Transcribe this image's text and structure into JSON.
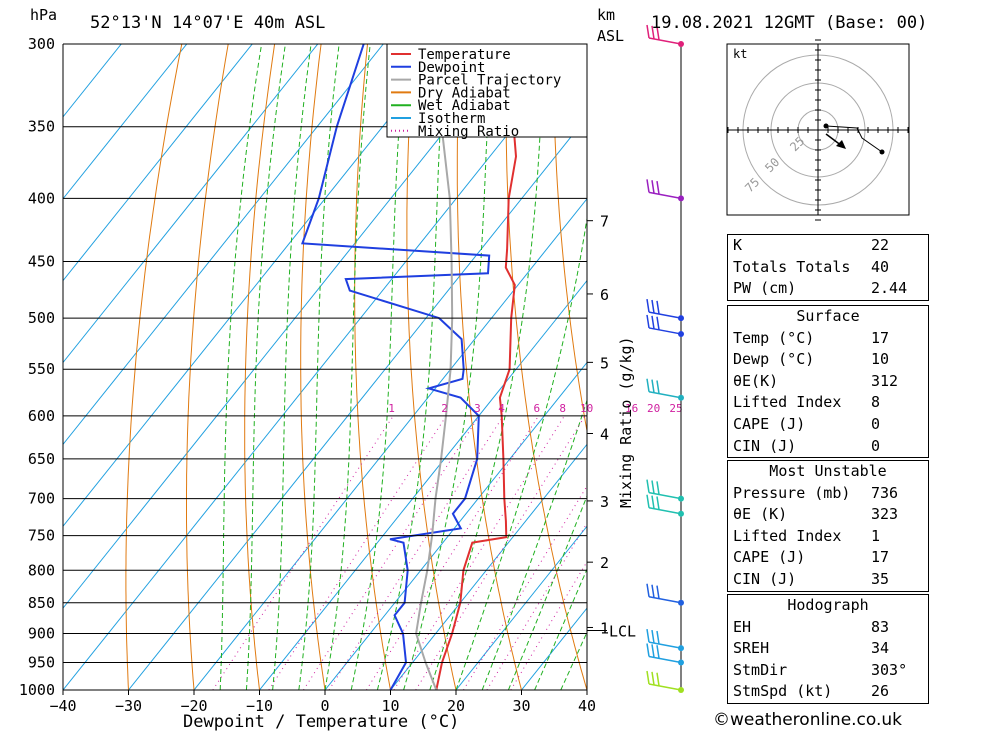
{
  "header": {
    "unit_hpa": "hPa",
    "location": "52°13'N  14°07'E  40m  ASL",
    "unit_km": "km",
    "unit_asl": "ASL",
    "datetime": "19.08.2021  12GMT  (Base: 00)"
  },
  "chart_data": {
    "type": "line",
    "xlabel": "Dewpoint / Temperature (°C)",
    "ylabel": "hPa",
    "right_axis_label": "Mixing Ratio (g/kg)",
    "xlim": [
      -40,
      40
    ],
    "ylim": [
      1000,
      300
    ],
    "x_ticks": [
      -40,
      -30,
      -20,
      -10,
      0,
      10,
      20,
      30,
      40
    ],
    "pressure_levels": [
      300,
      350,
      400,
      450,
      500,
      550,
      600,
      650,
      700,
      750,
      800,
      850,
      900,
      950,
      1000
    ],
    "km_ticks": [
      {
        "label": "7",
        "p": 417
      },
      {
        "label": "6",
        "p": 478
      },
      {
        "label": "5",
        "p": 543
      },
      {
        "label": "4",
        "p": 620
      },
      {
        "label": "3",
        "p": 703
      },
      {
        "label": "2",
        "p": 788
      },
      {
        "label": "1",
        "p": 890
      }
    ],
    "lcl": {
      "label": "LCL",
      "p": 895
    },
    "mixing_ratio_labels": [
      "1",
      "2",
      "3",
      "4",
      "6",
      "8",
      "10",
      "16",
      "20",
      "25"
    ],
    "legend": [
      "Temperature",
      "Dewpoint",
      "Parcel Trajectory",
      "Dry Adiabat",
      "Wet Adiabat",
      "Isotherm",
      "Mixing Ratio"
    ],
    "colors": {
      "temperature": "#e03030",
      "dewpoint": "#1f3fe0",
      "parcel": "#a8a8a8",
      "dry_adiabat": "#e07a10",
      "wet_adiabat": "#20b020",
      "isotherm": "#20a0e0",
      "mixing_ratio": "#d020a0"
    },
    "series": [
      {
        "name": "Temperature",
        "points": [
          {
            "p": 1000,
            "t": 17
          },
          {
            "p": 950,
            "t": 14.5
          },
          {
            "p": 900,
            "t": 12.5
          },
          {
            "p": 850,
            "t": 10
          },
          {
            "p": 800,
            "t": 6.5
          },
          {
            "p": 760,
            "t": 4.5
          },
          {
            "p": 752,
            "t": 9
          },
          {
            "p": 730,
            "t": 7
          },
          {
            "p": 700,
            "t": 4
          },
          {
            "p": 650,
            "t": -1
          },
          {
            "p": 600,
            "t": -6.5
          },
          {
            "p": 580,
            "t": -9
          },
          {
            "p": 550,
            "t": -11
          },
          {
            "p": 500,
            "t": -17
          },
          {
            "p": 470,
            "t": -20.5
          },
          {
            "p": 455,
            "t": -24
          },
          {
            "p": 440,
            "t": -26
          },
          {
            "p": 400,
            "t": -32
          },
          {
            "p": 370,
            "t": -36
          },
          {
            "p": 350,
            "t": -40
          },
          {
            "p": 300,
            "t": -50
          }
        ]
      },
      {
        "name": "Dewpoint",
        "points": [
          {
            "p": 1000,
            "t": 10
          },
          {
            "p": 950,
            "t": 9
          },
          {
            "p": 900,
            "t": 5
          },
          {
            "p": 870,
            "t": 1.5
          },
          {
            "p": 850,
            "t": 1.5
          },
          {
            "p": 800,
            "t": -2
          },
          {
            "p": 760,
            "t": -6
          },
          {
            "p": 755,
            "t": -8.5
          },
          {
            "p": 740,
            "t": 1
          },
          {
            "p": 720,
            "t": -2
          },
          {
            "p": 700,
            "t": -2
          },
          {
            "p": 650,
            "t": -5
          },
          {
            "p": 600,
            "t": -10
          },
          {
            "p": 580,
            "t": -15
          },
          {
            "p": 570,
            "t": -21
          },
          {
            "p": 560,
            "t": -17
          },
          {
            "p": 550,
            "t": -18
          },
          {
            "p": 520,
            "t": -22
          },
          {
            "p": 500,
            "t": -28
          },
          {
            "p": 475,
            "t": -45
          },
          {
            "p": 465,
            "t": -47
          },
          {
            "p": 460,
            "t": -26
          },
          {
            "p": 445,
            "t": -28
          },
          {
            "p": 435,
            "t": -58
          },
          {
            "p": 400,
            "t": -61
          },
          {
            "p": 350,
            "t": -67
          },
          {
            "p": 300,
            "t": -73
          }
        ]
      },
      {
        "name": "Parcel Trajectory",
        "points": [
          {
            "p": 1000,
            "t": 17
          },
          {
            "p": 950,
            "t": 12
          },
          {
            "p": 900,
            "t": 7
          },
          {
            "p": 850,
            "t": 4
          },
          {
            "p": 800,
            "t": 1
          },
          {
            "p": 750,
            "t": -2.5
          },
          {
            "p": 700,
            "t": -6.5
          },
          {
            "p": 650,
            "t": -10.5
          },
          {
            "p": 600,
            "t": -15
          },
          {
            "p": 550,
            "t": -20
          },
          {
            "p": 500,
            "t": -26
          },
          {
            "p": 450,
            "t": -33
          },
          {
            "p": 400,
            "t": -41
          },
          {
            "p": 350,
            "t": -51
          },
          {
            "p": 300,
            "t": -62
          }
        ]
      }
    ],
    "wind_barbs": [
      {
        "p": 300,
        "color": "#e0207a"
      },
      {
        "p": 400,
        "color": "#9a20c0"
      },
      {
        "p": 500,
        "color": "#2040e0"
      },
      {
        "p": 515,
        "color": "#2040e0"
      },
      {
        "p": 580,
        "color": "#20b0c0"
      },
      {
        "p": 700,
        "color": "#20c0b0"
      },
      {
        "p": 720,
        "color": "#20c0b0"
      },
      {
        "p": 850,
        "color": "#2060e0"
      },
      {
        "p": 925,
        "color": "#20a0e0"
      },
      {
        "p": 950,
        "color": "#20a0e0"
      },
      {
        "p": 1000,
        "color": "#a0e020"
      }
    ]
  },
  "hodograph": {
    "unit": "kt",
    "ring_labels": [
      "25",
      "50",
      "75"
    ]
  },
  "indices": {
    "rows": [
      {
        "label": "K",
        "value": "22"
      },
      {
        "label": "Totals Totals",
        "value": "40"
      },
      {
        "label": "PW (cm)",
        "value": "2.44"
      }
    ]
  },
  "surface": {
    "title": "Surface",
    "rows": [
      {
        "label": "Temp (°C)",
        "value": "17"
      },
      {
        "label": "Dewp (°C)",
        "value": "10"
      },
      {
        "label": "θE(K)",
        "value": "312"
      },
      {
        "label": "Lifted Index",
        "value": "8"
      },
      {
        "label": "CAPE (J)",
        "value": "0"
      },
      {
        "label": "CIN (J)",
        "value": "0"
      }
    ]
  },
  "most_unstable": {
    "title": "Most Unstable",
    "rows": [
      {
        "label": "Pressure (mb)",
        "value": "736"
      },
      {
        "label": "θE (K)",
        "value": "323"
      },
      {
        "label": "Lifted Index",
        "value": "1"
      },
      {
        "label": "CAPE (J)",
        "value": "17"
      },
      {
        "label": "CIN (J)",
        "value": "35"
      }
    ]
  },
  "hodograph_stats": {
    "title": "Hodograph",
    "rows": [
      {
        "label": "EH",
        "value": "83"
      },
      {
        "label": "SREH",
        "value": "34"
      },
      {
        "label": "StmDir",
        "value": "303°"
      },
      {
        "label": "StmSpd (kt)",
        "value": "26"
      }
    ]
  },
  "footer": {
    "text": "©weatheronline.co.uk"
  }
}
